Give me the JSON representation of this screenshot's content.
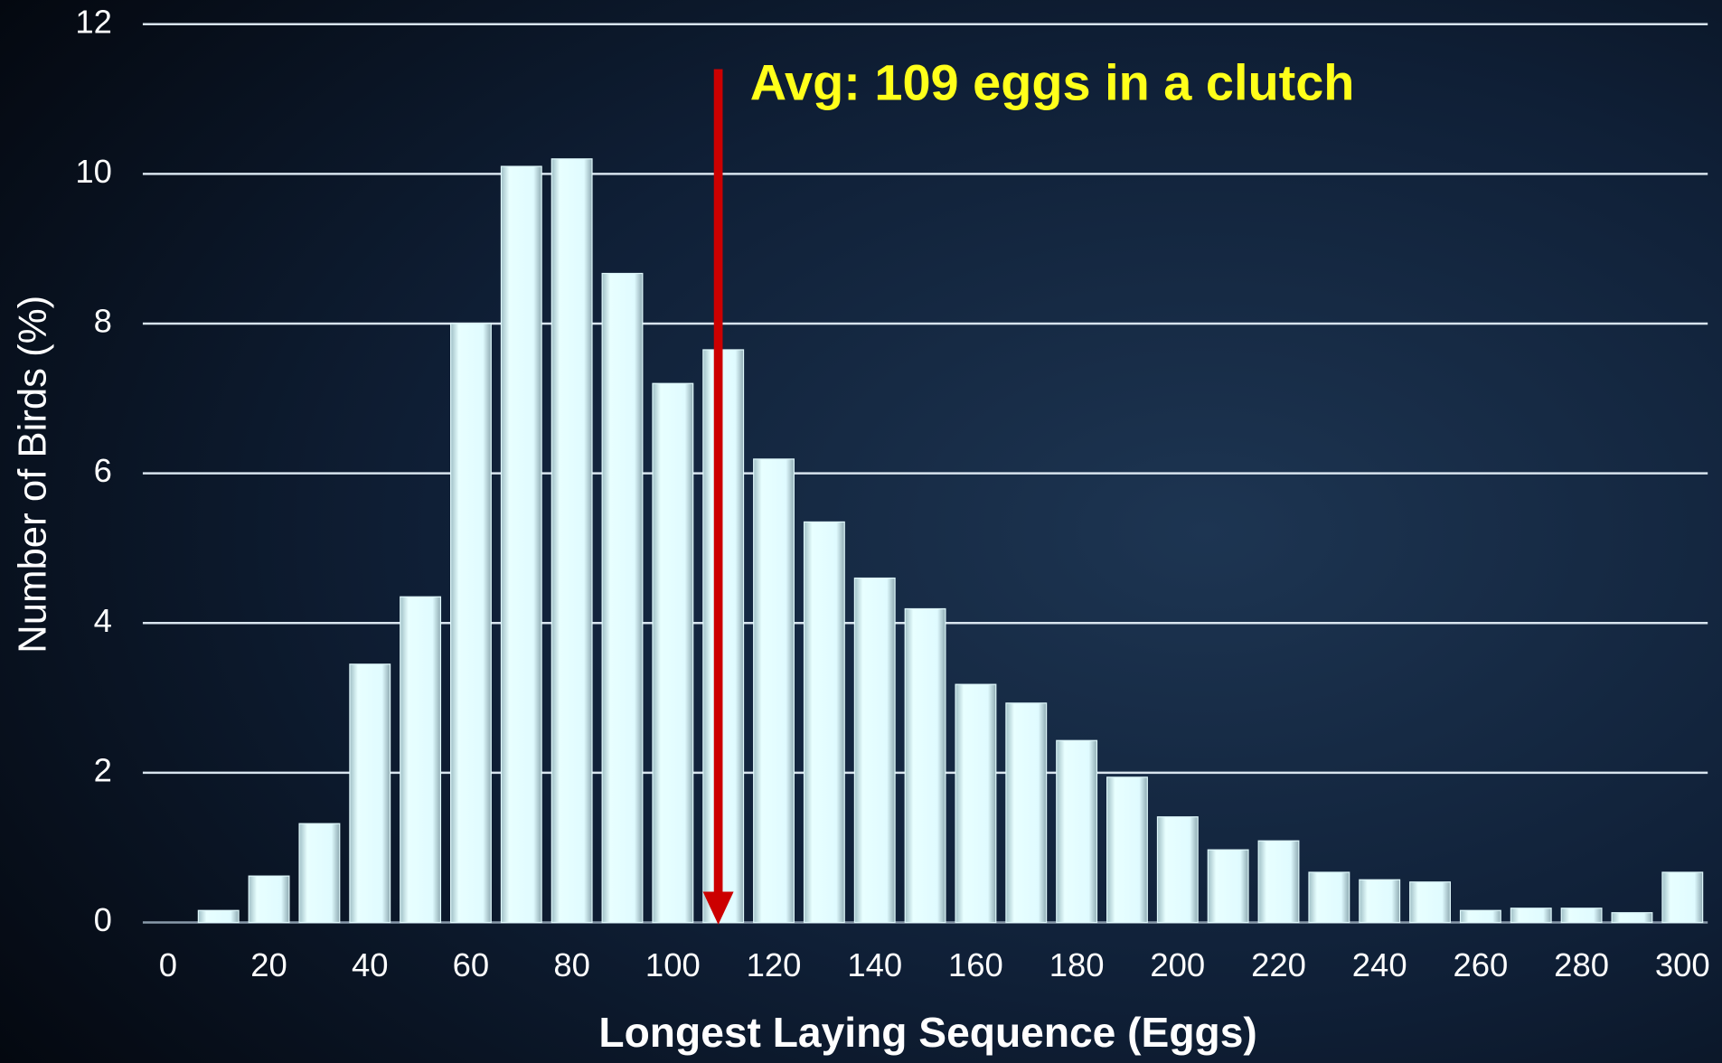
{
  "chart_data": {
    "type": "bar",
    "x_label": "Longest Laying Sequence (Eggs)",
    "y_label": "Number of Birds  (%)",
    "x": [
      10,
      20,
      30,
      40,
      50,
      60,
      70,
      80,
      90,
      100,
      110,
      120,
      130,
      140,
      150,
      160,
      170,
      180,
      190,
      200,
      210,
      220,
      230,
      240,
      250,
      260,
      270,
      280,
      290,
      300
    ],
    "values": [
      0.16,
      0.62,
      1.32,
      3.45,
      4.35,
      8.0,
      10.1,
      10.2,
      8.67,
      7.2,
      7.65,
      6.19,
      5.35,
      4.6,
      4.19,
      3.18,
      2.93,
      2.43,
      1.94,
      1.41,
      0.97,
      1.09,
      0.67,
      0.57,
      0.54,
      0.16,
      0.19,
      0.19,
      0.13,
      0.67
    ],
    "color": "#dff8fb",
    "xlim": [
      -5,
      305
    ],
    "xticks": [
      0,
      20,
      40,
      60,
      80,
      100,
      120,
      140,
      160,
      180,
      200,
      220,
      240,
      260,
      280,
      300
    ],
    "ylim": [
      0,
      12
    ],
    "yticks": [
      0,
      2,
      4,
      6,
      8,
      10,
      12
    ],
    "grid": true,
    "annotation": {
      "text": "Avg: 109 eggs in a clutch",
      "x": 109,
      "color": "#ffff1a",
      "arrow_color": "#cc0000"
    }
  }
}
